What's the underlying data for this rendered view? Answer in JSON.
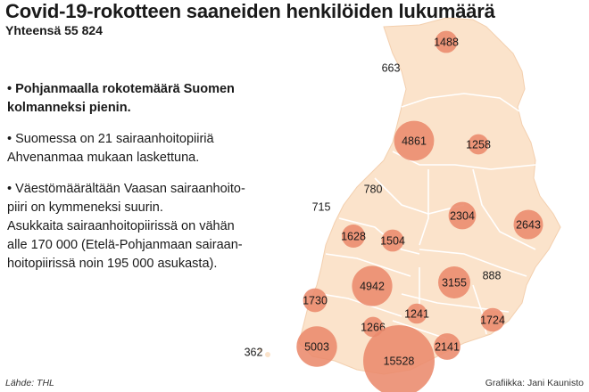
{
  "title": "Covid-19-rokotteen saaneiden henkilöiden lukumäärä",
  "subtitle": "Yhteensä 55 824",
  "notes": [
    {
      "bold": true,
      "lines": [
        "• Pohjanmaalla rokotemäärä Suomen",
        "kolmanneksi pienin."
      ]
    },
    {
      "bold": false,
      "lines": [
        "• Suomessa on 21 sairaanhoitopiiriä",
        "Ahvenanmaa mukaan laskettuna."
      ]
    },
    {
      "bold": false,
      "lines": [
        "• Väestömäärältään Vaasan sairaanhoito-",
        "piiri on kymmeneksi suurin.",
        "Asukkaita sairaanhoitopiirissä on vähän",
        "alle 170 000 (Etelä-Pohjanmaan sairaan-",
        "hoitopiirissä noin 195 000 asukasta)."
      ]
    }
  ],
  "source": "Lähde: THL",
  "credit": "Grafiikka: Jani Kaunisto",
  "colors": {
    "land": "#fbe3cb",
    "border": "#ffffff",
    "bubble": "#ea8a6c",
    "text": "#1a1a1a"
  },
  "districts": [
    {
      "value": 1488,
      "label": "1488"
    },
    {
      "value": 663,
      "label": "663"
    },
    {
      "value": 4861,
      "label": "4861"
    },
    {
      "value": 1258,
      "label": "1258"
    },
    {
      "value": 780,
      "label": "780"
    },
    {
      "value": 715,
      "label": "715"
    },
    {
      "value": 2304,
      "label": "2304"
    },
    {
      "value": 2643,
      "label": "2643"
    },
    {
      "value": 1628,
      "label": "1628"
    },
    {
      "value": 1504,
      "label": "1504"
    },
    {
      "value": 888,
      "label": "888"
    },
    {
      "value": 4942,
      "label": "4942"
    },
    {
      "value": 3155,
      "label": "3155"
    },
    {
      "value": 1730,
      "label": "1730"
    },
    {
      "value": 1241,
      "label": "1241"
    },
    {
      "value": 1266,
      "label": "1266"
    },
    {
      "value": 1724,
      "label": "1724"
    },
    {
      "value": 5003,
      "label": "5003"
    },
    {
      "value": 15528,
      "label": "15528"
    },
    {
      "value": 2141,
      "label": "2141"
    },
    {
      "value": 362,
      "label": "362"
    }
  ]
}
